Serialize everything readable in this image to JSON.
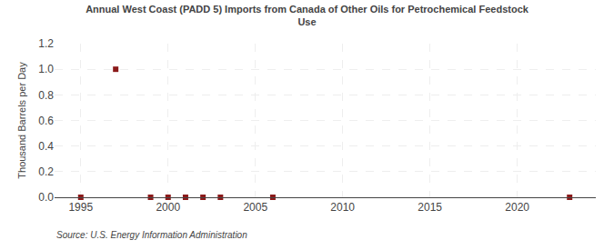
{
  "chart_data": {
    "type": "scatter",
    "title": "Annual West Coast (PADD 5) Imports from Canada of Other Oils for Petrochemical Feedstock\nUse",
    "ylabel": "Thousand Barrels per Day",
    "annotations": [
      "Source: U.S. Energy Information Administration"
    ],
    "x": [
      1995,
      1997,
      1999,
      2000,
      2001,
      2002,
      2003,
      2006,
      2023
    ],
    "values": [
      0.0,
      1.0,
      0.0,
      0.0,
      0.0,
      0.0,
      0.0,
      0.0,
      0.0
    ],
    "color": "#8b1a1a",
    "marker": "square",
    "xlim": [
      1993.5,
      2024.5
    ],
    "xticks": [
      1995,
      2000,
      2005,
      2010,
      2015,
      2020
    ],
    "ylim": [
      0,
      1.2
    ],
    "yticks": [
      {
        "value": 0.0,
        "label": "0.0"
      },
      0.2,
      0.4,
      0.6,
      0.8,
      {
        "value": 1.0,
        "label": "1.0"
      },
      1.2
    ],
    "grid": true
  }
}
